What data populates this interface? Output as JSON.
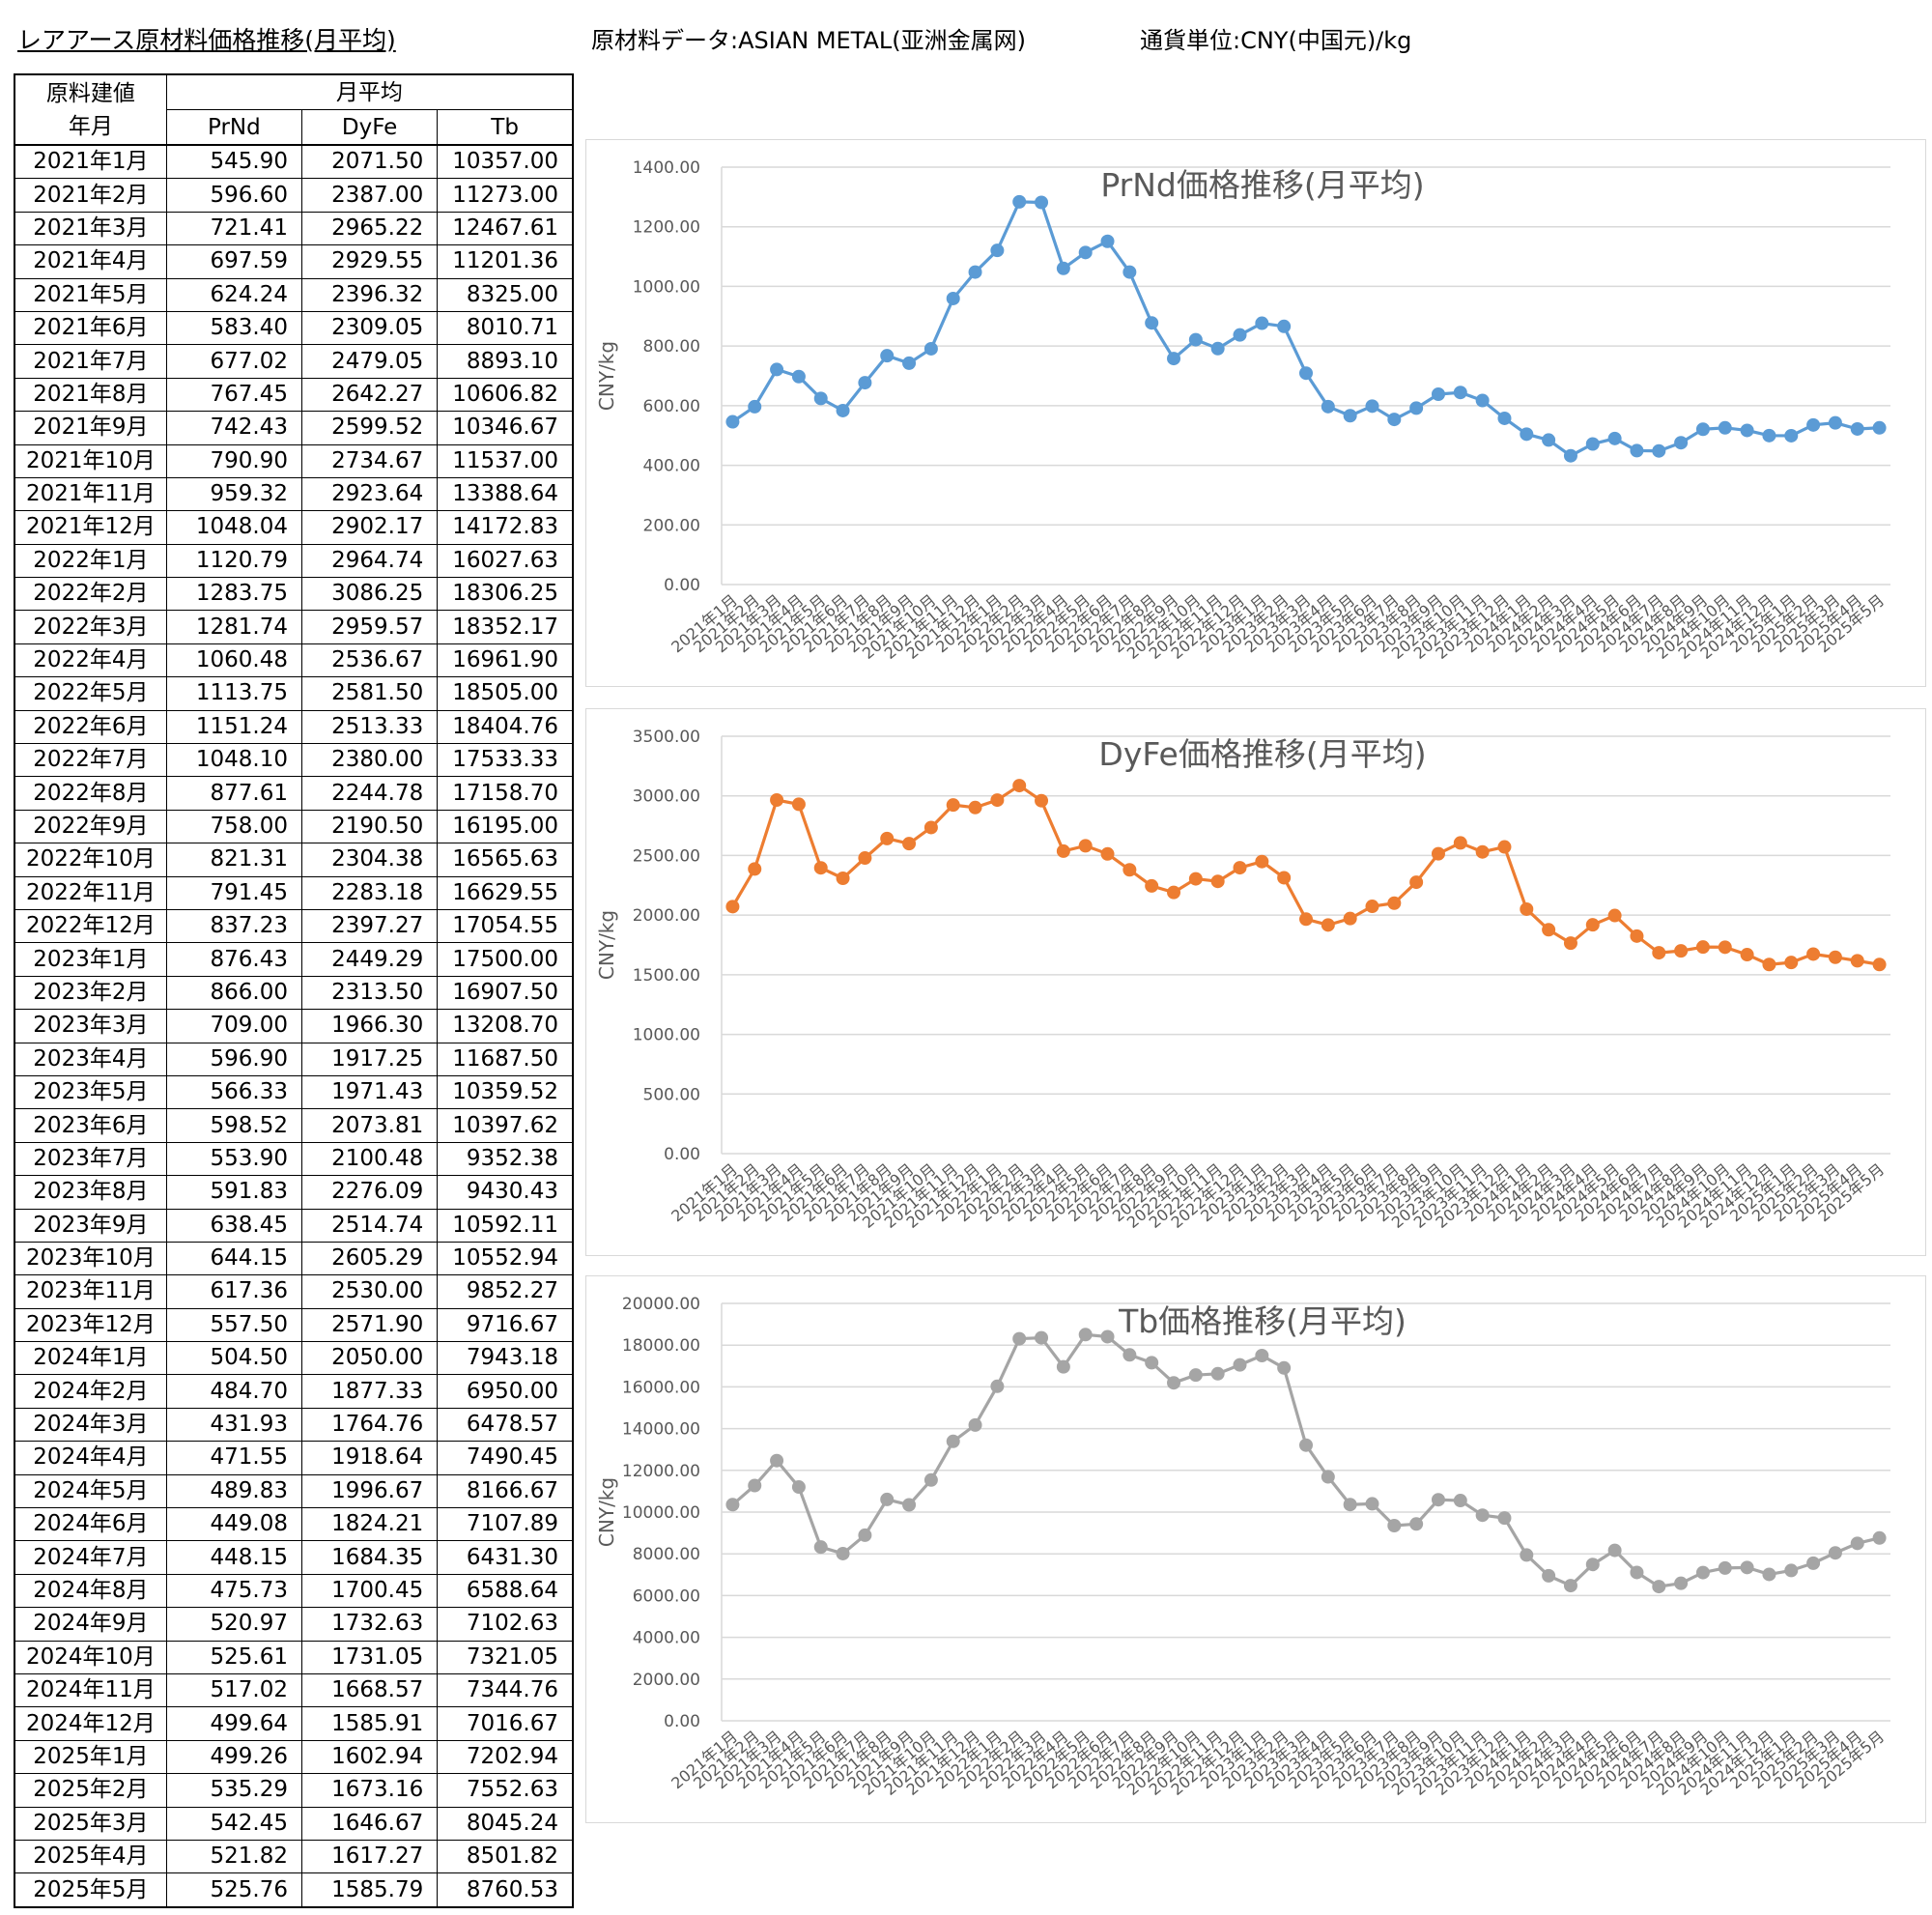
{
  "header": {
    "title": "レアアース原材料価格推移(月平均)",
    "source": "原材料データ:ASIAN METAL(亚洲金属网)",
    "currency": "通貨単位:CNY(中国元)/kg"
  },
  "table": {
    "corner_line1": "原料建値",
    "corner_line2": "年月",
    "group_header": "月平均",
    "columns": [
      "PrNd",
      "DyFe",
      "Tb"
    ],
    "rows": [
      [
        "2021年1月",
        "545.90",
        "2071.50",
        "10357.00"
      ],
      [
        "2021年2月",
        "596.60",
        "2387.00",
        "11273.00"
      ],
      [
        "2021年3月",
        "721.41",
        "2965.22",
        "12467.61"
      ],
      [
        "2021年4月",
        "697.59",
        "2929.55",
        "11201.36"
      ],
      [
        "2021年5月",
        "624.24",
        "2396.32",
        "8325.00"
      ],
      [
        "2021年6月",
        "583.40",
        "2309.05",
        "8010.71"
      ],
      [
        "2021年7月",
        "677.02",
        "2479.05",
        "8893.10"
      ],
      [
        "2021年8月",
        "767.45",
        "2642.27",
        "10606.82"
      ],
      [
        "2021年9月",
        "742.43",
        "2599.52",
        "10346.67"
      ],
      [
        "2021年10月",
        "790.90",
        "2734.67",
        "11537.00"
      ],
      [
        "2021年11月",
        "959.32",
        "2923.64",
        "13388.64"
      ],
      [
        "2021年12月",
        "1048.04",
        "2902.17",
        "14172.83"
      ],
      [
        "2022年1月",
        "1120.79",
        "2964.74",
        "16027.63"
      ],
      [
        "2022年2月",
        "1283.75",
        "3086.25",
        "18306.25"
      ],
      [
        "2022年3月",
        "1281.74",
        "2959.57",
        "18352.17"
      ],
      [
        "2022年4月",
        "1060.48",
        "2536.67",
        "16961.90"
      ],
      [
        "2022年5月",
        "1113.75",
        "2581.50",
        "18505.00"
      ],
      [
        "2022年6月",
        "1151.24",
        "2513.33",
        "18404.76"
      ],
      [
        "2022年7月",
        "1048.10",
        "2380.00",
        "17533.33"
      ],
      [
        "2022年8月",
        "877.61",
        "2244.78",
        "17158.70"
      ],
      [
        "2022年9月",
        "758.00",
        "2190.50",
        "16195.00"
      ],
      [
        "2022年10月",
        "821.31",
        "2304.38",
        "16565.63"
      ],
      [
        "2022年11月",
        "791.45",
        "2283.18",
        "16629.55"
      ],
      [
        "2022年12月",
        "837.23",
        "2397.27",
        "17054.55"
      ],
      [
        "2023年1月",
        "876.43",
        "2449.29",
        "17500.00"
      ],
      [
        "2023年2月",
        "866.00",
        "2313.50",
        "16907.50"
      ],
      [
        "2023年3月",
        "709.00",
        "1966.30",
        "13208.70"
      ],
      [
        "2023年4月",
        "596.90",
        "1917.25",
        "11687.50"
      ],
      [
        "2023年5月",
        "566.33",
        "1971.43",
        "10359.52"
      ],
      [
        "2023年6月",
        "598.52",
        "2073.81",
        "10397.62"
      ],
      [
        "2023年7月",
        "553.90",
        "2100.48",
        "9352.38"
      ],
      [
        "2023年8月",
        "591.83",
        "2276.09",
        "9430.43"
      ],
      [
        "2023年9月",
        "638.45",
        "2514.74",
        "10592.11"
      ],
      [
        "2023年10月",
        "644.15",
        "2605.29",
        "10552.94"
      ],
      [
        "2023年11月",
        "617.36",
        "2530.00",
        "9852.27"
      ],
      [
        "2023年12月",
        "557.50",
        "2571.90",
        "9716.67"
      ],
      [
        "2024年1月",
        "504.50",
        "2050.00",
        "7943.18"
      ],
      [
        "2024年2月",
        "484.70",
        "1877.33",
        "6950.00"
      ],
      [
        "2024年3月",
        "431.93",
        "1764.76",
        "6478.57"
      ],
      [
        "2024年4月",
        "471.55",
        "1918.64",
        "7490.45"
      ],
      [
        "2024年5月",
        "489.83",
        "1996.67",
        "8166.67"
      ],
      [
        "2024年6月",
        "449.08",
        "1824.21",
        "7107.89"
      ],
      [
        "2024年7月",
        "448.15",
        "1684.35",
        "6431.30"
      ],
      [
        "2024年8月",
        "475.73",
        "1700.45",
        "6588.64"
      ],
      [
        "2024年9月",
        "520.97",
        "1732.63",
        "7102.63"
      ],
      [
        "2024年10月",
        "525.61",
        "1731.05",
        "7321.05"
      ],
      [
        "2024年11月",
        "517.02",
        "1668.57",
        "7344.76"
      ],
      [
        "2024年12月",
        "499.64",
        "1585.91",
        "7016.67"
      ],
      [
        "2025年1月",
        "499.26",
        "1602.94",
        "7202.94"
      ],
      [
        "2025年2月",
        "535.29",
        "1673.16",
        "7552.63"
      ],
      [
        "2025年3月",
        "542.45",
        "1646.67",
        "8045.24"
      ],
      [
        "2025年4月",
        "521.82",
        "1617.27",
        "8501.82"
      ],
      [
        "2025年5月",
        "525.76",
        "1585.79",
        "8760.53"
      ]
    ]
  },
  "chart_data": [
    {
      "type": "line",
      "title": "PrNd価格推移(月平均)",
      "ylabel": "CNY/kg",
      "xlabel": "",
      "ylim": [
        0,
        1400
      ],
      "ystep": 200,
      "color": "#5b9bd5",
      "categories": [
        "2021年1月",
        "2021年2月",
        "2021年3月",
        "2021年4月",
        "2021年5月",
        "2021年6月",
        "2021年7月",
        "2021年8月",
        "2021年9月",
        "2021年10月",
        "2021年11月",
        "2021年12月",
        "2022年1月",
        "2022年2月",
        "2022年3月",
        "2022年4月",
        "2022年5月",
        "2022年6月",
        "2022年7月",
        "2022年8月",
        "2022年9月",
        "2022年10月",
        "2022年11月",
        "2022年12月",
        "2023年1月",
        "2023年2月",
        "2023年3月",
        "2023年4月",
        "2023年5月",
        "2023年6月",
        "2023年7月",
        "2023年8月",
        "2023年9月",
        "2023年10月",
        "2023年11月",
        "2023年12月",
        "2024年1月",
        "2024年2月",
        "2024年3月",
        "2024年4月",
        "2024年5月",
        "2024年6月",
        "2024年7月",
        "2024年8月",
        "2024年9月",
        "2024年10月",
        "2024年11月",
        "2024年12月",
        "2025年1月",
        "2025年2月",
        "2025年3月",
        "2025年4月",
        "2025年5月"
      ],
      "values": [
        545.9,
        596.6,
        721.41,
        697.59,
        624.24,
        583.4,
        677.02,
        767.45,
        742.43,
        790.9,
        959.32,
        1048.04,
        1120.79,
        1283.75,
        1281.74,
        1060.48,
        1113.75,
        1151.24,
        1048.1,
        877.61,
        758.0,
        821.31,
        791.45,
        837.23,
        876.43,
        866.0,
        709.0,
        596.9,
        566.33,
        598.52,
        553.9,
        591.83,
        638.45,
        644.15,
        617.36,
        557.5,
        504.5,
        484.7,
        431.93,
        471.55,
        489.83,
        449.08,
        448.15,
        475.73,
        520.97,
        525.61,
        517.02,
        499.64,
        499.26,
        535.29,
        542.45,
        521.82,
        525.76
      ],
      "grid": true,
      "legend": "none"
    },
    {
      "type": "line",
      "title": "DyFe価格推移(月平均)",
      "ylabel": "CNY/kg",
      "xlabel": "",
      "ylim": [
        0,
        3500
      ],
      "ystep": 500,
      "color": "#ed7d31",
      "categories": [
        "2021年1月",
        "2021年2月",
        "2021年3月",
        "2021年4月",
        "2021年5月",
        "2021年6月",
        "2021年7月",
        "2021年8月",
        "2021年9月",
        "2021年10月",
        "2021年11月",
        "2021年12月",
        "2022年1月",
        "2022年2月",
        "2022年3月",
        "2022年4月",
        "2022年5月",
        "2022年6月",
        "2022年7月",
        "2022年8月",
        "2022年9月",
        "2022年10月",
        "2022年11月",
        "2022年12月",
        "2023年1月",
        "2023年2月",
        "2023年3月",
        "2023年4月",
        "2023年5月",
        "2023年6月",
        "2023年7月",
        "2023年8月",
        "2023年9月",
        "2023年10月",
        "2023年11月",
        "2023年12月",
        "2024年1月",
        "2024年2月",
        "2024年3月",
        "2024年4月",
        "2024年5月",
        "2024年6月",
        "2024年7月",
        "2024年8月",
        "2024年9月",
        "2024年10月",
        "2024年11月",
        "2024年12月",
        "2025年1月",
        "2025年2月",
        "2025年3月",
        "2025年4月",
        "2025年5月"
      ],
      "values": [
        2071.5,
        2387.0,
        2965.22,
        2929.55,
        2396.32,
        2309.05,
        2479.05,
        2642.27,
        2599.52,
        2734.67,
        2923.64,
        2902.17,
        2964.74,
        3086.25,
        2959.57,
        2536.67,
        2581.5,
        2513.33,
        2380.0,
        2244.78,
        2190.5,
        2304.38,
        2283.18,
        2397.27,
        2449.29,
        2313.5,
        1966.3,
        1917.25,
        1971.43,
        2073.81,
        2100.48,
        2276.09,
        2514.74,
        2605.29,
        2530.0,
        2571.9,
        2050.0,
        1877.33,
        1764.76,
        1918.64,
        1996.67,
        1824.21,
        1684.35,
        1700.45,
        1732.63,
        1731.05,
        1668.57,
        1585.91,
        1602.94,
        1673.16,
        1646.67,
        1617.27,
        1585.79
      ],
      "grid": true,
      "legend": "none"
    },
    {
      "type": "line",
      "title": "Tb価格推移(月平均)",
      "ylabel": "CNY/kg",
      "xlabel": "",
      "ylim": [
        0,
        20000
      ],
      "ystep": 2000,
      "color": "#a5a5a5",
      "categories": [
        "2021年1月",
        "2021年2月",
        "2021年3月",
        "2021年4月",
        "2021年5月",
        "2021年6月",
        "2021年7月",
        "2021年8月",
        "2021年9月",
        "2021年10月",
        "2021年11月",
        "2021年12月",
        "2022年1月",
        "2022年2月",
        "2022年3月",
        "2022年4月",
        "2022年5月",
        "2022年6月",
        "2022年7月",
        "2022年8月",
        "2022年9月",
        "2022年10月",
        "2022年11月",
        "2022年12月",
        "2023年1月",
        "2023年2月",
        "2023年3月",
        "2023年4月",
        "2023年5月",
        "2023年6月",
        "2023年7月",
        "2023年8月",
        "2023年9月",
        "2023年10月",
        "2023年11月",
        "2023年12月",
        "2024年1月",
        "2024年2月",
        "2024年3月",
        "2024年4月",
        "2024年5月",
        "2024年6月",
        "2024年7月",
        "2024年8月",
        "2024年9月",
        "2024年10月",
        "2024年11月",
        "2024年12月",
        "2025年1月",
        "2025年2月",
        "2025年3月",
        "2025年4月",
        "2025年5月"
      ],
      "values": [
        10357.0,
        11273.0,
        12467.61,
        11201.36,
        8325.0,
        8010.71,
        8893.1,
        10606.82,
        10346.67,
        11537.0,
        13388.64,
        14172.83,
        16027.63,
        18306.25,
        18352.17,
        16961.9,
        18505.0,
        18404.76,
        17533.33,
        17158.7,
        16195.0,
        16565.63,
        16629.55,
        17054.55,
        17500.0,
        16907.5,
        13208.7,
        11687.5,
        10359.52,
        10397.62,
        9352.38,
        9430.43,
        10592.11,
        10552.94,
        9852.27,
        9716.67,
        7943.18,
        6950.0,
        6478.57,
        7490.45,
        8166.67,
        7107.89,
        6431.3,
        6588.64,
        7102.63,
        7321.05,
        7344.76,
        7016.67,
        7202.94,
        7552.63,
        8045.24,
        8501.82,
        8760.53
      ],
      "grid": true,
      "legend": "none"
    }
  ]
}
